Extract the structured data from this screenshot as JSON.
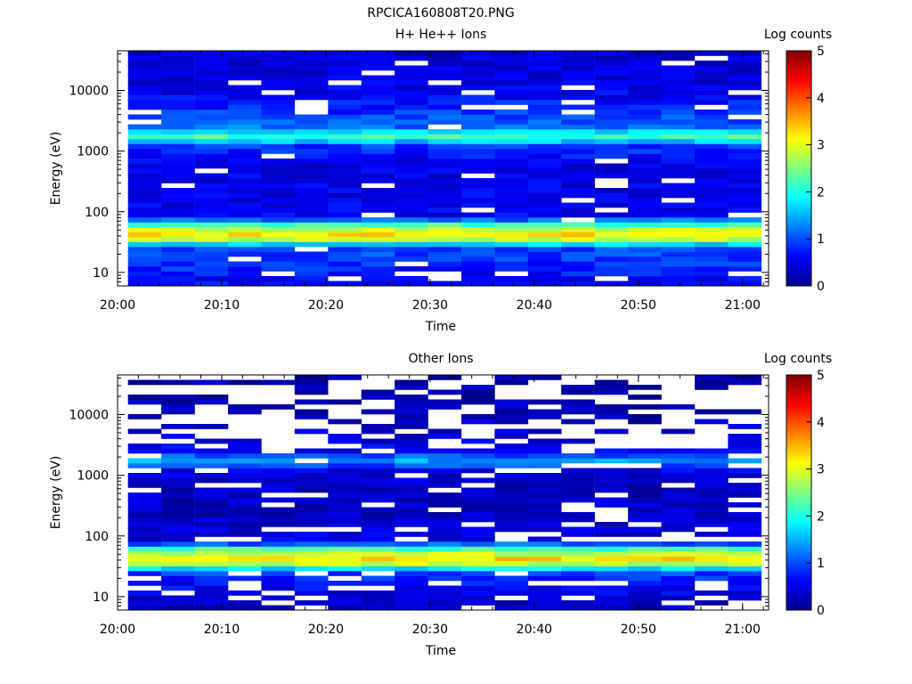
{
  "figure_title": "RPCICA160808T20.PNG",
  "colormap_stops": [
    "#00008f",
    "#0000ff",
    "#007fff",
    "#00ffff",
    "#7fff7f",
    "#ffff00",
    "#ff7f00",
    "#ff0000",
    "#7f0000"
  ],
  "chart_data": [
    {
      "type": "heatmap",
      "title": "H+ He++ Ions",
      "xlabel": "Time",
      "ylabel": "Energy (eV)",
      "yscale": "log",
      "ylim": [
        6,
        45000
      ],
      "xlim_minutes": [
        0,
        62.5
      ],
      "x_tick_labels": [
        "20:00",
        "20:10",
        "20:20",
        "20:30",
        "20:40",
        "20:50",
        "21:00"
      ],
      "y_tick_labels": [
        "10",
        "100",
        "1000",
        "10000"
      ],
      "colorbar": {
        "label": "Log counts",
        "range": [
          0,
          5
        ],
        "tick_labels": [
          "0",
          "1",
          "2",
          "3",
          "4",
          "5"
        ]
      },
      "time_bin_start": "20:01",
      "time_bin_minutes": 3.2,
      "time_bins": 19,
      "energy_bins": 48,
      "energy_profile_log_counts": [
        {
          "energy_eV": 8,
          "value": 0.6
        },
        {
          "energy_eV": 12,
          "value": 0.8
        },
        {
          "energy_eV": 18,
          "value": 0.9
        },
        {
          "energy_eV": 25,
          "value": 1.0
        },
        {
          "energy_eV": 32,
          "value": 2.2
        },
        {
          "energy_eV": 38,
          "value": 3.3
        },
        {
          "energy_eV": 45,
          "value": 3.2
        },
        {
          "energy_eV": 55,
          "value": 2.6
        },
        {
          "energy_eV": 65,
          "value": 2.0
        },
        {
          "energy_eV": 80,
          "value": 0.6
        },
        {
          "energy_eV": 200,
          "value": 0.5
        },
        {
          "energy_eV": 600,
          "value": 0.5
        },
        {
          "energy_eV": 1200,
          "value": 0.9
        },
        {
          "energy_eV": 1600,
          "value": 2.0
        },
        {
          "energy_eV": 1900,
          "value": 2.4
        },
        {
          "energy_eV": 2300,
          "value": 1.2
        },
        {
          "energy_eV": 10000,
          "value": 0.5
        },
        {
          "energy_eV": 40000,
          "value": 0.4
        }
      ]
    },
    {
      "type": "heatmap",
      "title": "Other Ions",
      "xlabel": "Time",
      "ylabel": "Energy (eV)",
      "yscale": "log",
      "ylim": [
        6,
        45000
      ],
      "xlim_minutes": [
        0,
        62.5
      ],
      "x_tick_labels": [
        "20:00",
        "20:10",
        "20:20",
        "20:30",
        "20:40",
        "20:50",
        "21:00"
      ],
      "y_tick_labels": [
        "10",
        "100",
        "1000",
        "10000"
      ],
      "colorbar": {
        "label": "Log counts",
        "range": [
          0,
          5
        ],
        "tick_labels": [
          "0",
          "1",
          "2",
          "3",
          "4",
          "5"
        ]
      },
      "time_bin_start": "20:01",
      "time_bin_minutes": 3.2,
      "time_bins": 19,
      "energy_bins": 48,
      "energy_profile_log_counts": [
        {
          "energy_eV": 8,
          "value": 0.3
        },
        {
          "energy_eV": 12,
          "value": 0.5
        },
        {
          "energy_eV": 18,
          "value": 0.7
        },
        {
          "energy_eV": 25,
          "value": 1.0
        },
        {
          "energy_eV": 32,
          "value": 2.2
        },
        {
          "energy_eV": 38,
          "value": 3.3
        },
        {
          "energy_eV": 45,
          "value": 3.2
        },
        {
          "energy_eV": 55,
          "value": 2.6
        },
        {
          "energy_eV": 65,
          "value": 2.0
        },
        {
          "energy_eV": 80,
          "value": 0.5
        },
        {
          "energy_eV": 200,
          "value": 0.3
        },
        {
          "energy_eV": 600,
          "value": 0.3
        },
        {
          "energy_eV": 1200,
          "value": 0.5
        },
        {
          "energy_eV": 1600,
          "value": 1.3
        },
        {
          "energy_eV": 1900,
          "value": 1.5
        },
        {
          "energy_eV": 2300,
          "value": 0.6
        },
        {
          "energy_eV": 10000,
          "value": 0.2
        },
        {
          "energy_eV": 40000,
          "value": 0.1
        }
      ]
    }
  ]
}
